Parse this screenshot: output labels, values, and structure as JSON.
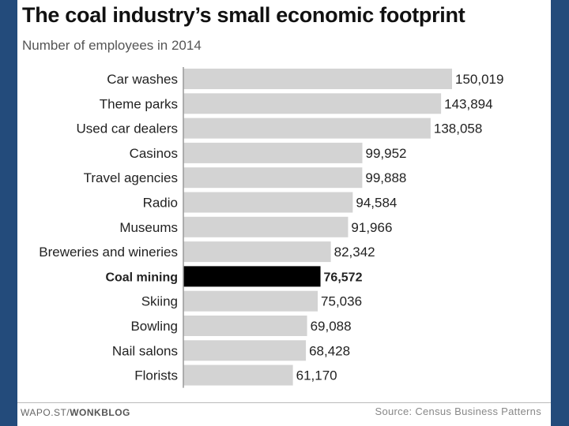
{
  "header": {
    "title": "The coal industry’s small economic footprint",
    "subtitle": "Number of employees in 2014"
  },
  "footer": {
    "credit_prefix": "WAPO.ST/",
    "credit_brand": "WONKBLOG",
    "source": "Source: Census Business Patterns"
  },
  "chart_data": {
    "type": "bar",
    "orientation": "horizontal",
    "title": "The coal industry’s small economic footprint",
    "subtitle": "Number of employees in 2014",
    "categories": [
      "Car washes",
      "Theme parks",
      "Used car dealers",
      "Casinos",
      "Travel agencies",
      "Radio",
      "Museums",
      "Breweries and wineries",
      "Coal mining",
      "Skiing",
      "Bowling",
      "Nail salons",
      "Florists"
    ],
    "values": [
      150019,
      143894,
      138058,
      99952,
      99888,
      94584,
      91966,
      82342,
      76572,
      75036,
      69088,
      68428,
      61170
    ],
    "value_labels": [
      "150,019",
      "143,894",
      "138,058",
      "99,952",
      "99,888",
      "94,584",
      "91,966",
      "82,342",
      "76,572",
      "75,036",
      "69,088",
      "68,428",
      "61,170"
    ],
    "highlight": "Coal mining",
    "colors": {
      "bar": "#d3d3d3",
      "highlight": "#000000",
      "axis": "#999999",
      "text": "#222222"
    },
    "xlim": [
      0,
      150019
    ]
  }
}
